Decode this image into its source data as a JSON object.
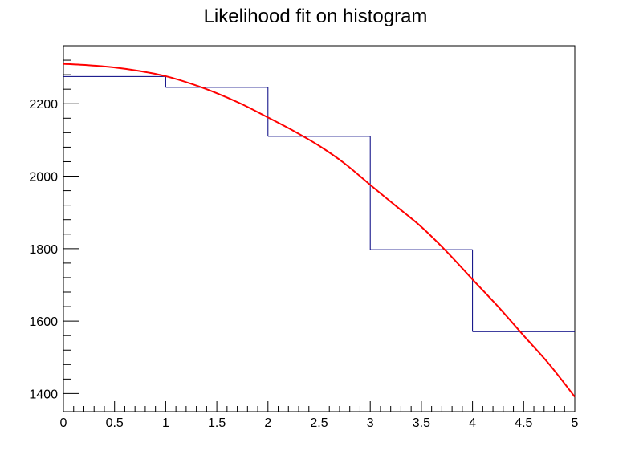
{
  "chart_data": {
    "type": "line",
    "title": "Likelihood fit on histogram",
    "xlabel": "",
    "ylabel": "",
    "xlim": [
      0,
      5
    ],
    "ylim": [
      1350,
      2360
    ],
    "grid": false,
    "legend": "none",
    "x_ticks": [
      0,
      0.5,
      1,
      1.5,
      2,
      2.5,
      3,
      3.5,
      4,
      4.5,
      5
    ],
    "x_tick_labels": [
      "0",
      "0.5",
      "1",
      "1.5",
      "2",
      "2.5",
      "3",
      "3.5",
      "4",
      "4.5",
      "5"
    ],
    "y_ticks": [
      1400,
      1600,
      1800,
      2000,
      2200
    ],
    "y_tick_labels": [
      "1400",
      "1600",
      "1800",
      "2000",
      "2200"
    ],
    "histogram": {
      "color": "#000080",
      "bin_edges": [
        0,
        1,
        2,
        3,
        4,
        5
      ],
      "counts": [
        2275,
        2245,
        2110,
        1797,
        1571
      ]
    },
    "fit": {
      "color": "#ff0000",
      "x": [
        0,
        0.25,
        0.5,
        0.75,
        1,
        1.25,
        1.5,
        1.75,
        2,
        2.25,
        2.5,
        2.75,
        3,
        3.25,
        3.5,
        3.75,
        4,
        4.25,
        4.5,
        4.75,
        5
      ],
      "y": [
        2310,
        2306,
        2300,
        2290,
        2276,
        2255,
        2229,
        2198,
        2162,
        2125,
        2084,
        2035,
        1976,
        1918,
        1860,
        1791,
        1715,
        1640,
        1560,
        1481,
        1391
      ]
    }
  }
}
